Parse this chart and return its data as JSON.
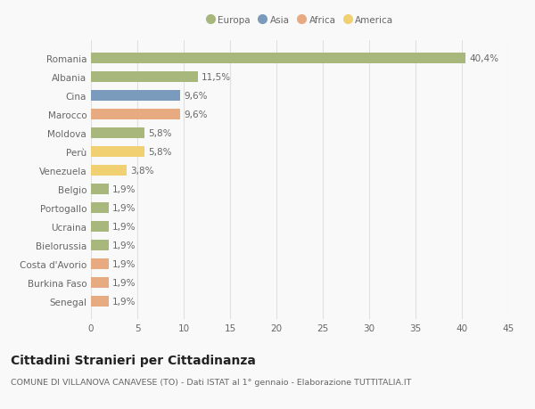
{
  "countries": [
    "Romania",
    "Albania",
    "Cina",
    "Marocco",
    "Moldova",
    "Perù",
    "Venezuela",
    "Belgio",
    "Portogallo",
    "Ucraina",
    "Bielorussia",
    "Costa d'Avorio",
    "Burkina Faso",
    "Senegal"
  ],
  "values": [
    40.4,
    11.5,
    9.6,
    9.6,
    5.8,
    5.8,
    3.8,
    1.9,
    1.9,
    1.9,
    1.9,
    1.9,
    1.9,
    1.9
  ],
  "labels": [
    "40,4%",
    "11,5%",
    "9,6%",
    "9,6%",
    "5,8%",
    "5,8%",
    "3,8%",
    "1,9%",
    "1,9%",
    "1,9%",
    "1,9%",
    "1,9%",
    "1,9%",
    "1,9%"
  ],
  "colors": [
    "#a8b87c",
    "#a8b87c",
    "#7b9bbd",
    "#e8aa80",
    "#a8b87c",
    "#f0d070",
    "#f0d070",
    "#a8b87c",
    "#a8b87c",
    "#a8b87c",
    "#a8b87c",
    "#e8aa80",
    "#e8aa80",
    "#e8aa80"
  ],
  "legend_labels": [
    "Europa",
    "Asia",
    "Africa",
    "America"
  ],
  "legend_colors": [
    "#a8b87c",
    "#7b9bbd",
    "#e8aa80",
    "#f0d070"
  ],
  "title": "Cittadini Stranieri per Cittadinanza",
  "subtitle": "COMUNE DI VILLANOVA CANAVESE (TO) - Dati ISTAT al 1° gennaio - Elaborazione TUTTITALIA.IT",
  "xlim": [
    0,
    45
  ],
  "xticks": [
    0,
    5,
    10,
    15,
    20,
    25,
    30,
    35,
    40,
    45
  ],
  "background_color": "#f9f9f9",
  "grid_color": "#e0e0e0",
  "bar_height": 0.55,
  "label_fontsize": 7.5,
  "tick_fontsize": 7.5,
  "title_fontsize": 10,
  "subtitle_fontsize": 6.8
}
